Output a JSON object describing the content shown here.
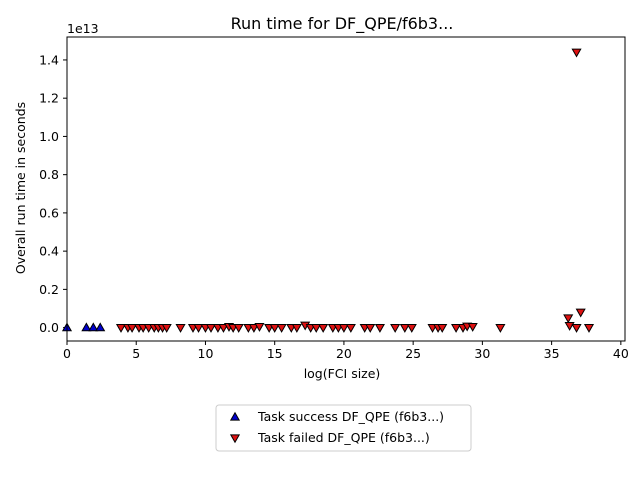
{
  "chart_data": {
    "type": "scatter",
    "title": "Run time for DF_QPE/f6b3...",
    "xlabel": "log(FCI size)",
    "ylabel": "Overall run time in seconds",
    "y_offset_label": "1e13",
    "y_scale_exponent": 13,
    "xlim": [
      0,
      40.3
    ],
    "ylim": [
      -0.07,
      1.52
    ],
    "x_ticks": [
      0,
      5,
      10,
      15,
      20,
      25,
      30,
      35,
      40
    ],
    "y_ticks": [
      0.0,
      0.2,
      0.4,
      0.6,
      0.8,
      1.0,
      1.2,
      1.4
    ],
    "x_tick_labels": [
      "0",
      "5",
      "10",
      "15",
      "20",
      "25",
      "30",
      "35",
      "40"
    ],
    "y_tick_labels": [
      "0.0",
      "0.2",
      "0.4",
      "0.6",
      "0.8",
      "1.0",
      "1.2",
      "1.4"
    ],
    "grid": false,
    "legend_position": "below",
    "series": [
      {
        "name": "Task success DF_QPE (f6b3...)",
        "marker": "triangle-up",
        "color": "#0000cc",
        "points": [
          [
            0.0,
            0.0
          ],
          [
            1.4,
            0.0
          ],
          [
            1.9,
            0.0
          ],
          [
            2.4,
            0.0
          ]
        ]
      },
      {
        "name": "Task failed DF_QPE (f6b3...)",
        "marker": "triangle-down",
        "color": "#dd1111",
        "points": [
          [
            3.9,
            0.0
          ],
          [
            4.4,
            0.0
          ],
          [
            4.7,
            0.0
          ],
          [
            5.2,
            0.0
          ],
          [
            5.5,
            0.0
          ],
          [
            5.9,
            0.0
          ],
          [
            6.3,
            0.0
          ],
          [
            6.6,
            0.0
          ],
          [
            6.9,
            0.0
          ],
          [
            7.2,
            0.0
          ],
          [
            8.2,
            0.0
          ],
          [
            9.1,
            0.0
          ],
          [
            9.5,
            0.0
          ],
          [
            10.0,
            0.0
          ],
          [
            10.4,
            0.0
          ],
          [
            10.9,
            0.0
          ],
          [
            11.3,
            0.0
          ],
          [
            11.7,
            0.005
          ],
          [
            12.0,
            0.0
          ],
          [
            12.4,
            0.0
          ],
          [
            13.1,
            0.0
          ],
          [
            13.5,
            0.0
          ],
          [
            13.9,
            0.005
          ],
          [
            14.6,
            0.0
          ],
          [
            15.0,
            0.0
          ],
          [
            15.5,
            0.0
          ],
          [
            16.2,
            0.0
          ],
          [
            16.6,
            0.0
          ],
          [
            17.2,
            0.012
          ],
          [
            17.6,
            0.0
          ],
          [
            18.0,
            0.0
          ],
          [
            18.5,
            0.0
          ],
          [
            19.2,
            0.0
          ],
          [
            19.6,
            0.0
          ],
          [
            20.0,
            0.0
          ],
          [
            20.5,
            0.0
          ],
          [
            21.5,
            0.0
          ],
          [
            21.9,
            0.0
          ],
          [
            22.6,
            0.0
          ],
          [
            23.7,
            0.0
          ],
          [
            24.4,
            0.0
          ],
          [
            24.9,
            0.0
          ],
          [
            26.4,
            0.0
          ],
          [
            26.8,
            0.0
          ],
          [
            27.1,
            0.0
          ],
          [
            28.1,
            0.0
          ],
          [
            28.6,
            0.0
          ],
          [
            28.9,
            0.007
          ],
          [
            29.3,
            0.005
          ],
          [
            31.3,
            0.0
          ],
          [
            36.2,
            0.05
          ],
          [
            36.3,
            0.01
          ],
          [
            36.8,
            0.0
          ],
          [
            37.1,
            0.08
          ],
          [
            37.7,
            0.0
          ],
          [
            36.8,
            1.44
          ]
        ]
      }
    ]
  }
}
